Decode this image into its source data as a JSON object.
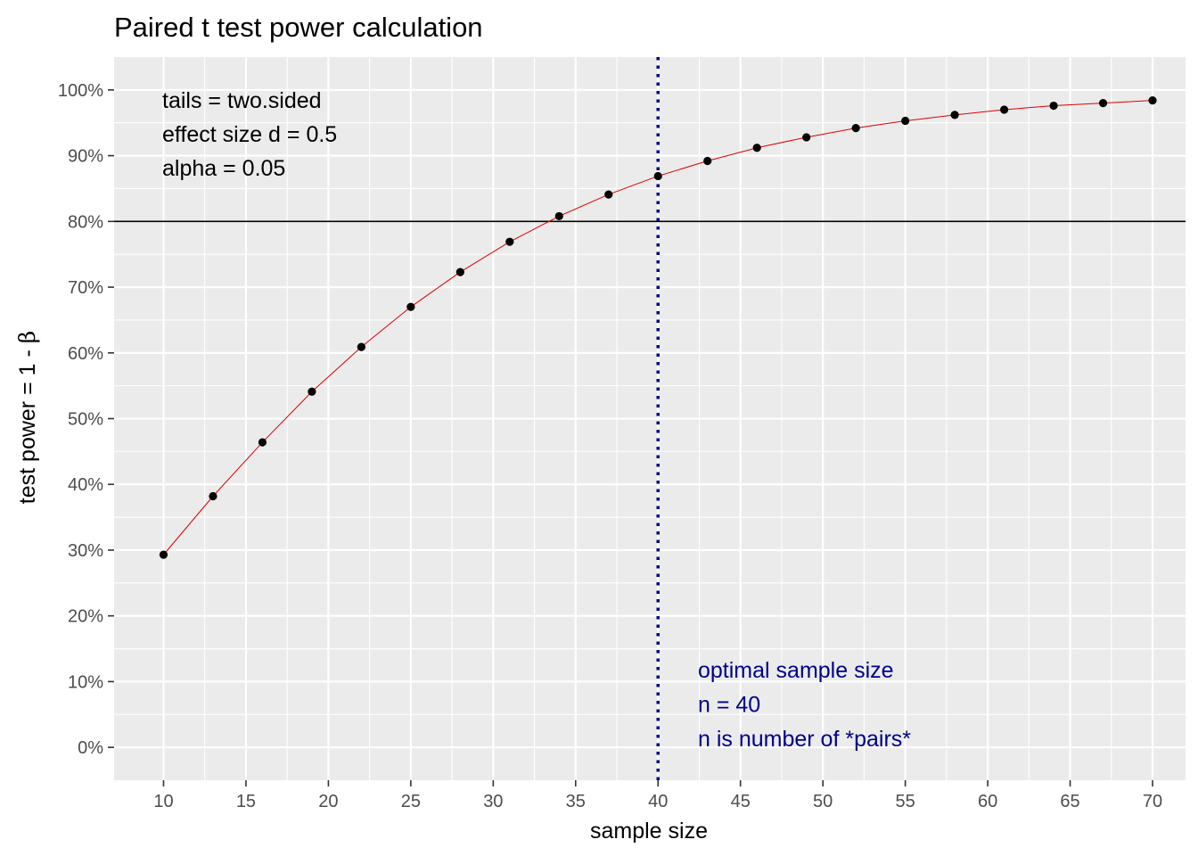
{
  "chart_data": {
    "type": "line",
    "title": "Paired t test power calculation",
    "xlabel": "sample size",
    "ylabel_prefix": "test power = 1 - ",
    "ylabel_symbol": "β",
    "xlim": [
      7,
      72
    ],
    "ylim": [
      -5,
      105
    ],
    "x_ticks": [
      10,
      15,
      20,
      25,
      30,
      35,
      40,
      45,
      50,
      55,
      60,
      65,
      70
    ],
    "y_ticks": [
      0,
      10,
      20,
      30,
      40,
      50,
      60,
      70,
      80,
      90,
      100
    ],
    "y_tick_labels": [
      "0%",
      "10%",
      "20%",
      "30%",
      "40%",
      "50%",
      "60%",
      "70%",
      "80%",
      "90%",
      "100%"
    ],
    "grid": true,
    "series": [
      {
        "x": [
          10,
          13,
          16,
          19,
          22,
          25,
          28,
          31,
          34,
          37,
          40,
          43,
          46,
          49,
          52,
          55,
          58,
          61,
          64,
          67,
          70
        ],
        "y": [
          29.3,
          38.2,
          46.4,
          54.1,
          60.9,
          67.0,
          72.3,
          76.9,
          80.8,
          84.1,
          86.9,
          89.2,
          91.2,
          92.8,
          94.2,
          95.3,
          96.2,
          97.0,
          97.6,
          98.0,
          98.4
        ]
      }
    ],
    "line_color": "#dd0000",
    "point_color": "#000000",
    "hline": 80,
    "vline": 40,
    "vline_color": "#00008b",
    "annotation_params": [
      "tails = two.sided",
      "effect size d = 0.5",
      "alpha = 0.05"
    ],
    "annotation_optimal": [
      "optimal sample size",
      "n = 40",
      "n is number of *pairs*"
    ],
    "annotation_optimal_color": "#00008b",
    "panel_background": "#ebebeb",
    "grid_color": "#ffffff"
  }
}
